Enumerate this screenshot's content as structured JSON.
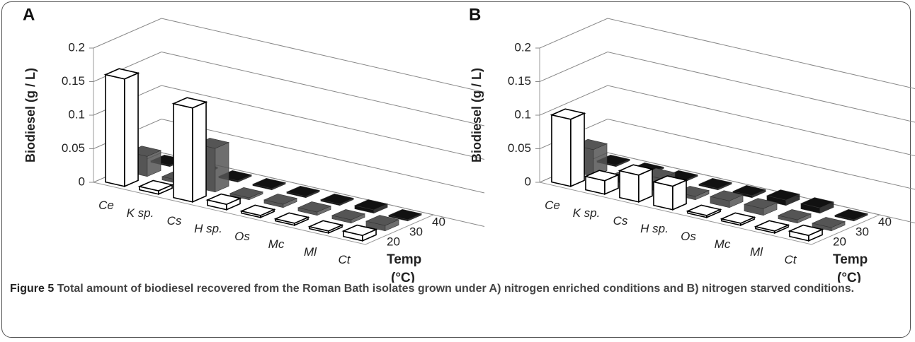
{
  "chart_data": [
    {
      "type": "bar3d",
      "title": "A",
      "y_label": "Biodiesel (g / L)",
      "depth_label": "Temp",
      "depth_unit": "(°C)",
      "categories": [
        "Ce",
        "K sp.",
        "Cs",
        "H sp.",
        "Os",
        "Mc",
        "Ml",
        "Ct"
      ],
      "series": [
        {
          "name": "20",
          "color": "#ffffff",
          "values": [
            0.16,
            0.005,
            0.14,
            0.008,
            0.003,
            0.003,
            0.003,
            0.008
          ]
        },
        {
          "name": "30",
          "color": "#555555",
          "values": [
            0.03,
            0.005,
            0.065,
            0.003,
            0.005,
            0.005,
            0.005,
            0.008
          ]
        },
        {
          "name": "40",
          "color": "#111111",
          "values": [
            0.002,
            0.002,
            0.002,
            0.002,
            0.002,
            0.002,
            0.005,
            0.002
          ]
        }
      ],
      "ylim": [
        0,
        0.2
      ],
      "yticks": [
        0,
        0.05,
        0.1,
        0.15,
        0.2
      ],
      "grid": true
    },
    {
      "type": "bar3d",
      "title": "B",
      "y_label": "Biodiesel (g / L)",
      "depth_label": "Temp",
      "depth_unit": "(°C)",
      "categories": [
        "Ce",
        "K sp.",
        "Cs",
        "H sp.",
        "Os",
        "Mc",
        "Ml",
        "Ct"
      ],
      "series": [
        {
          "name": "20",
          "color": "#ffffff",
          "values": [
            0.1,
            0.02,
            0.04,
            0.035,
            0.003,
            0.003,
            0.003,
            0.008
          ]
        },
        {
          "name": "30",
          "color": "#555555",
          "values": [
            0.04,
            0.005,
            0.02,
            0.005,
            0.01,
            0.01,
            0.005,
            0.005
          ]
        },
        {
          "name": "40",
          "color": "#111111",
          "values": [
            0.002,
            0.002,
            0.002,
            0.002,
            0.003,
            0.008,
            0.008,
            0.002
          ]
        }
      ],
      "ylim": [
        0,
        0.2
      ],
      "yticks": [
        0,
        0.05,
        0.1,
        0.15,
        0.2
      ],
      "grid": true
    }
  ],
  "caption": {
    "label": "Figure 5",
    "text": "Total amount of biodiesel recovered from the Roman Bath isolates grown under A) nitrogen enriched conditions and B) nitrogen starved conditions."
  }
}
